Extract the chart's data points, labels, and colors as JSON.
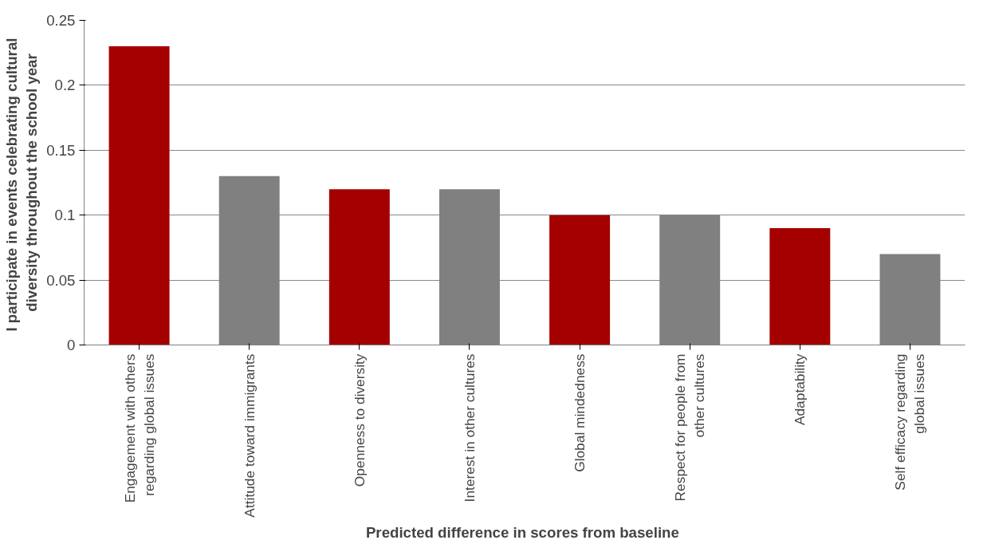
{
  "chart_data": {
    "type": "bar",
    "xlabel": "Predicted difference  in scores from baseline",
    "ylabel": "I participate  in events celebrating cultural diversity throughout the school year",
    "categories": [
      "Engagement with others regarding global issues",
      "Attitude toward immigrants",
      "Openness to diversity",
      "Interest in other cultures",
      "Global mindedness",
      "Respect for people from other cultures",
      "Adaptability",
      "Self efficacy regarding global issues"
    ],
    "values": [
      0.23,
      0.13,
      0.12,
      0.12,
      0.1,
      0.1,
      0.09,
      0.07
    ],
    "colors": [
      "#a50000",
      "#808080",
      "#a50000",
      "#808080",
      "#a50000",
      "#808080",
      "#a50000",
      "#808080"
    ],
    "ylim": [
      0,
      0.25
    ],
    "yticks": [
      0,
      0.05,
      0.1,
      0.15,
      0.2,
      0.25
    ],
    "grid": "y"
  }
}
